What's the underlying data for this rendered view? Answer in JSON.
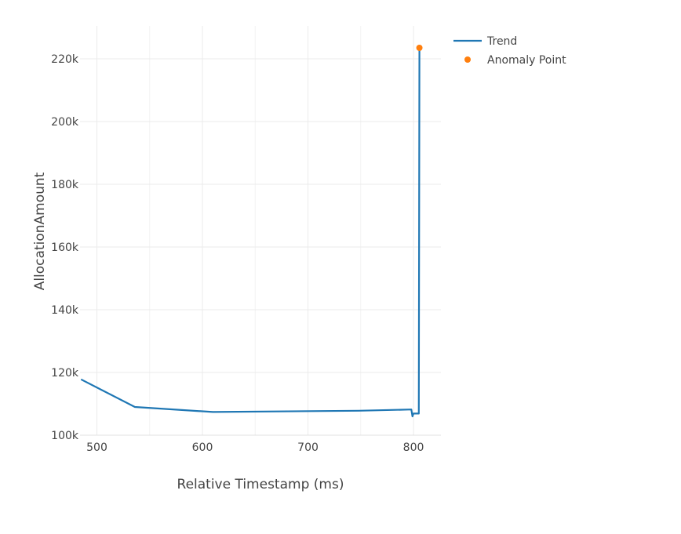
{
  "chart_data": {
    "type": "line",
    "title": "",
    "xlabel": "Relative Timestamp (ms)",
    "ylabel": "AllocationAmount",
    "xlim": [
      484,
      826
    ],
    "ylim": [
      100000,
      230500
    ],
    "x_ticks": [
      500,
      600,
      700,
      800
    ],
    "x_tick_labels": [
      "500",
      "600",
      "700",
      "800"
    ],
    "y_ticks": [
      100000,
      120000,
      140000,
      160000,
      180000,
      200000,
      220000
    ],
    "y_tick_labels": [
      "100k",
      "120k",
      "140k",
      "160k",
      "180k",
      "200k",
      "220k"
    ],
    "grid": true,
    "legend_position": "top-right",
    "series": [
      {
        "name": "Trend",
        "mode": "line",
        "color": "#1f77b4",
        "x": [
          485,
          536,
          610,
          748,
          798,
          799,
          800,
          805,
          805.6
        ],
        "y": [
          117800,
          109000,
          107400,
          107800,
          108200,
          106000,
          106900,
          106900,
          223500
        ]
      },
      {
        "name": "Anomaly Point",
        "mode": "markers",
        "color": "#ff7f0e",
        "x": [
          805.6
        ],
        "y": [
          223500
        ]
      }
    ]
  }
}
